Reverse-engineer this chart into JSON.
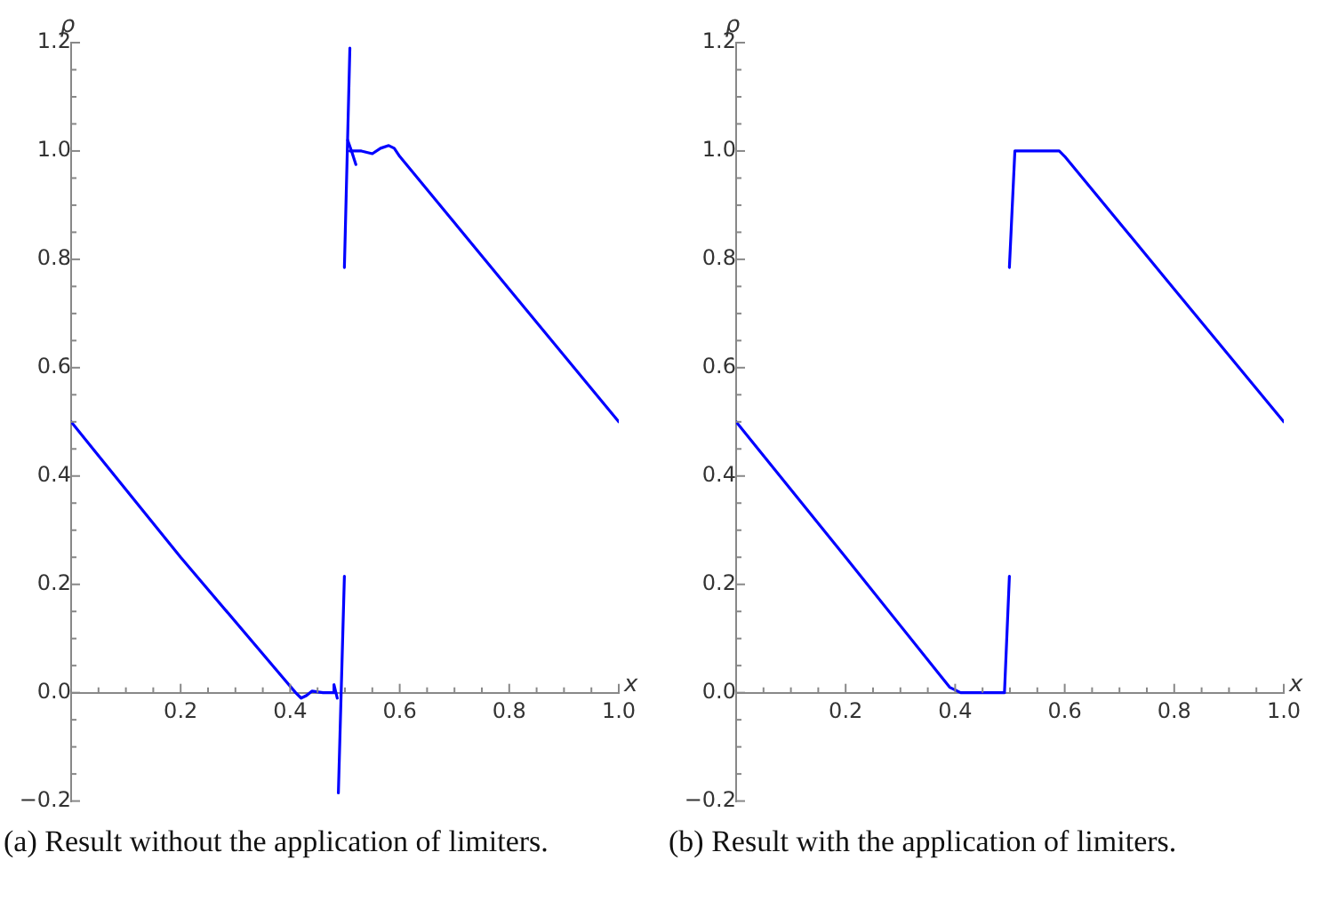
{
  "chart_data": [
    {
      "type": "line",
      "xlabel": "x",
      "ylabel": "ρ",
      "marker": "none",
      "line_style": "solid",
      "xlim": [
        0,
        1
      ],
      "ylim": [
        -0.2,
        1.2
      ],
      "xticks": [
        {
          "value": 0.05,
          "label": null
        },
        {
          "value": 0.1,
          "label": null
        },
        {
          "value": 0.15,
          "label": null
        },
        0.2,
        {
          "value": 0.25,
          "label": null
        },
        {
          "value": 0.3,
          "label": null
        },
        {
          "value": 0.35,
          "label": null
        },
        0.4,
        {
          "value": 0.45,
          "label": null
        },
        {
          "value": 0.5,
          "label": null
        },
        {
          "value": 0.55,
          "label": null
        },
        0.6,
        {
          "value": 0.65,
          "label": null
        },
        {
          "value": 0.7,
          "label": null
        },
        {
          "value": 0.75,
          "label": null
        },
        0.8,
        {
          "value": 0.85,
          "label": null
        },
        {
          "value": 0.9,
          "label": null
        },
        {
          "value": 0.95,
          "label": null
        },
        {
          "value": 1,
          "label": "1.0"
        }
      ],
      "yticks": [
        {
          "value": -0.2,
          "label": "−0.2"
        },
        {
          "value": -0.15,
          "label": null
        },
        {
          "value": -0.1,
          "label": null
        },
        {
          "value": -0.05,
          "label": null
        },
        {
          "value": 0,
          "label": "0.0"
        },
        {
          "value": 0.05,
          "label": null
        },
        {
          "value": 0.1,
          "label": null
        },
        {
          "value": 0.15,
          "label": null
        },
        0.2,
        {
          "value": 0.25,
          "label": null
        },
        {
          "value": 0.3,
          "label": null
        },
        {
          "value": 0.35,
          "label": null
        },
        0.4,
        {
          "value": 0.45,
          "label": null
        },
        {
          "value": 0.5,
          "label": null
        },
        {
          "value": 0.55,
          "label": null
        },
        0.6,
        {
          "value": 0.65,
          "label": null
        },
        {
          "value": 0.7,
          "label": null
        },
        {
          "value": 0.75,
          "label": null
        },
        0.8,
        {
          "value": 0.85,
          "label": null
        },
        {
          "value": 0.9,
          "label": null
        },
        {
          "value": 0.95,
          "label": null
        },
        {
          "value": 1,
          "label": "1.0"
        },
        {
          "value": 1.05,
          "label": null
        },
        {
          "value": 1.1,
          "label": null
        },
        {
          "value": 1.15,
          "label": null
        },
        {
          "value": 1.2,
          "label": "1.2"
        }
      ],
      "series": [
        {
          "color": "#0000ff",
          "x": [
            0,
            0.2,
            0.41,
            0.42,
            0.43,
            0.44,
            0.46,
            0.478,
            0.48,
            0.486
          ],
          "values": [
            0.5,
            0.25,
            0,
            -0.01,
            -0.005,
            0.003,
            0,
            0,
            0.015,
            -0.01
          ]
        },
        {
          "color": "#0000ff",
          "x": [
            0.488,
            0.499
          ],
          "values": [
            -0.185,
            0.215
          ]
        },
        {
          "color": "#0000ff",
          "x": [
            0.499,
            0.509
          ],
          "values": [
            0.785,
            1.19
          ]
        },
        {
          "color": "#0000ff",
          "x": [
            0.509,
            0.53,
            0.55,
            0.565,
            0.58,
            0.59,
            0.6,
            0.8,
            1
          ],
          "values": [
            1.0,
            1.0,
            0.995,
            1.005,
            1.01,
            1.005,
            0.99,
            0.745,
            0.5
          ]
        },
        {
          "color": "#0000ff",
          "x": [
            0.505,
            0.512,
            0.52
          ],
          "values": [
            1.02,
            1.0,
            0.975
          ]
        }
      ],
      "annotations": [
        "(a) Result without the application of limiters."
      ]
    },
    {
      "type": "line",
      "xlabel": "x",
      "ylabel": "ρ",
      "marker": "none",
      "line_style": "solid",
      "xlim": [
        0,
        1
      ],
      "ylim": [
        -0.2,
        1.2
      ],
      "xticks": [
        {
          "value": 0.05,
          "label": null
        },
        {
          "value": 0.1,
          "label": null
        },
        {
          "value": 0.15,
          "label": null
        },
        0.2,
        {
          "value": 0.25,
          "label": null
        },
        {
          "value": 0.3,
          "label": null
        },
        {
          "value": 0.35,
          "label": null
        },
        0.4,
        {
          "value": 0.45,
          "label": null
        },
        {
          "value": 0.5,
          "label": null
        },
        {
          "value": 0.55,
          "label": null
        },
        0.6,
        {
          "value": 0.65,
          "label": null
        },
        {
          "value": 0.7,
          "label": null
        },
        {
          "value": 0.75,
          "label": null
        },
        0.8,
        {
          "value": 0.85,
          "label": null
        },
        {
          "value": 0.9,
          "label": null
        },
        {
          "value": 0.95,
          "label": null
        },
        {
          "value": 1,
          "label": "1.0"
        }
      ],
      "yticks": [
        {
          "value": -0.2,
          "label": "−0.2"
        },
        {
          "value": -0.15,
          "label": null
        },
        {
          "value": -0.1,
          "label": null
        },
        {
          "value": -0.05,
          "label": null
        },
        {
          "value": 0,
          "label": "0.0"
        },
        {
          "value": 0.05,
          "label": null
        },
        {
          "value": 0.1,
          "label": null
        },
        {
          "value": 0.15,
          "label": null
        },
        0.2,
        {
          "value": 0.25,
          "label": null
        },
        {
          "value": 0.3,
          "label": null
        },
        {
          "value": 0.35,
          "label": null
        },
        0.4,
        {
          "value": 0.45,
          "label": null
        },
        {
          "value": 0.5,
          "label": null
        },
        {
          "value": 0.55,
          "label": null
        },
        0.6,
        {
          "value": 0.65,
          "label": null
        },
        {
          "value": 0.7,
          "label": null
        },
        {
          "value": 0.75,
          "label": null
        },
        0.8,
        {
          "value": 0.85,
          "label": null
        },
        {
          "value": 0.9,
          "label": null
        },
        {
          "value": 0.95,
          "label": null
        },
        {
          "value": 1,
          "label": "1.0"
        },
        {
          "value": 1.05,
          "label": null
        },
        {
          "value": 1.1,
          "label": null
        },
        {
          "value": 1.15,
          "label": null
        },
        {
          "value": 1.2,
          "label": "1.2"
        }
      ],
      "series": [
        {
          "color": "#0000ff",
          "x": [
            0,
            0.2,
            0.39,
            0.41,
            0.49,
            0.499
          ],
          "values": [
            0.5,
            0.25,
            0.01,
            0,
            0,
            0.215
          ]
        },
        {
          "color": "#0000ff",
          "x": [
            0.499,
            0.509,
            0.59,
            0.6,
            0.8,
            1
          ],
          "values": [
            0.785,
            1.0,
            1.0,
            0.99,
            0.745,
            0.5
          ]
        }
      ],
      "annotations": [
        "(b) Result with the application of limiters."
      ]
    }
  ]
}
